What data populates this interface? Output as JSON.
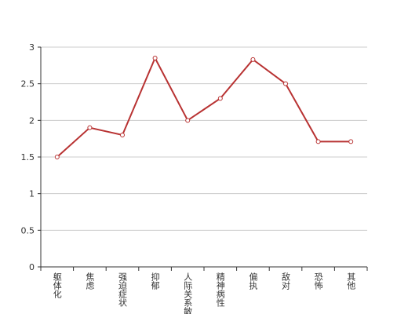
{
  "chart_data": {
    "type": "line",
    "categories": [
      "躯体化",
      "焦虑",
      "强迫症状",
      "抑郁",
      "人际关系敏感",
      "精神病性",
      "偏执",
      "敌对",
      "恐怖",
      "其他"
    ],
    "values": [
      1.5,
      1.9,
      1.8,
      2.85,
      2.0,
      2.3,
      2.83,
      2.5,
      1.71,
      1.71
    ],
    "color": "#b83232",
    "ylim": [
      0,
      3
    ],
    "yticks": [
      0,
      0.5,
      1,
      1.5,
      2,
      2.5,
      3
    ],
    "grid": true
  }
}
